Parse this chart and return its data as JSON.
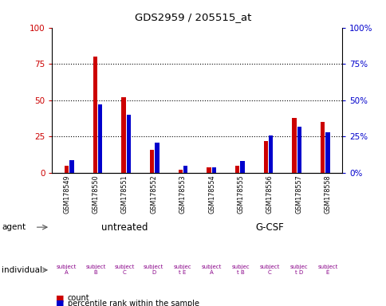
{
  "title": "GDS2959 / 205515_at",
  "samples": [
    "GSM178549",
    "GSM178550",
    "GSM178551",
    "GSM178552",
    "GSM178553",
    "GSM178554",
    "GSM178555",
    "GSM178556",
    "GSM178557",
    "GSM178558"
  ],
  "count_values": [
    5,
    80,
    52,
    16,
    2,
    4,
    5,
    22,
    38,
    35
  ],
  "percentile_values": [
    9,
    47,
    40,
    21,
    5,
    4,
    8,
    26,
    32,
    28
  ],
  "ylim": [
    0,
    100
  ],
  "yticks": [
    0,
    25,
    50,
    75,
    100
  ],
  "count_color": "#cc0000",
  "percentile_color": "#0000cc",
  "agent_untreated_color": "#99ee99",
  "agent_gcsf_color": "#44cc44",
  "individual_light": "#ffaaff",
  "individual_bright": "#ee44ee",
  "bright_indices": [
    4,
    6,
    8
  ],
  "agent_labels": [
    "untreated",
    "G-CSF"
  ],
  "individual_labels": [
    "subject\nA",
    "subject\nB",
    "subject\nC",
    "subject\nD",
    "subjec\nt E",
    "subject\nA",
    "subjec\nt B",
    "subject\nC",
    "subjec\nt D",
    "subject\nE"
  ],
  "xticklabel_bg": "#c8c8c8",
  "bg_color": "#ffffff",
  "axis_color_left": "#cc0000",
  "axis_color_right": "#0000cc"
}
